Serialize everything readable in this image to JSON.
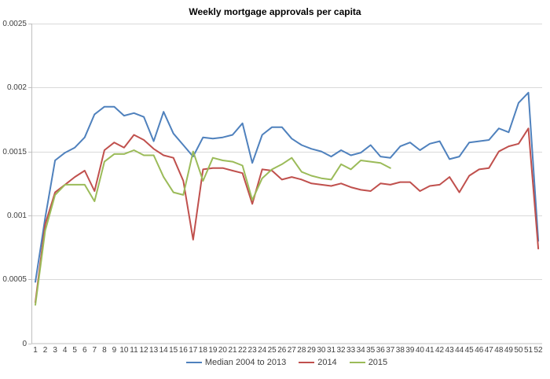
{
  "title": "Weekly mortgage approvals per capita",
  "chart_data": {
    "type": "line",
    "title": "Weekly mortgage approvals per capita",
    "xlabel": "",
    "ylabel": "",
    "x": [
      1,
      2,
      3,
      4,
      5,
      6,
      7,
      8,
      9,
      10,
      11,
      12,
      13,
      14,
      15,
      16,
      17,
      18,
      19,
      20,
      21,
      22,
      23,
      24,
      25,
      26,
      27,
      28,
      29,
      30,
      31,
      32,
      33,
      34,
      35,
      36,
      37,
      38,
      39,
      40,
      41,
      42,
      43,
      44,
      45,
      46,
      47,
      48,
      49,
      50,
      51,
      52
    ],
    "ylim": [
      0,
      0.0025
    ],
    "y_tick_labels": [
      "0",
      "0.0005",
      "0.001",
      "0.0015",
      "0.002",
      "0.0025"
    ],
    "grid": "horizontal",
    "legend_position": "bottom",
    "background": "#ffffff",
    "gridline_color": "#d9d9d9",
    "axis_color": "#bfbfbf",
    "series": [
      {
        "name": "Median 2004 to 2013",
        "color": "#4F81BD",
        "values": [
          0.00048,
          0.00098,
          0.00143,
          0.00149,
          0.00153,
          0.00161,
          0.00179,
          0.00185,
          0.00185,
          0.00178,
          0.0018,
          0.00177,
          0.00158,
          0.00181,
          0.00164,
          0.00155,
          0.00146,
          0.00161,
          0.0016,
          0.00161,
          0.00163,
          0.00172,
          0.00141,
          0.00163,
          0.00169,
          0.00169,
          0.0016,
          0.00155,
          0.00152,
          0.0015,
          0.00146,
          0.00151,
          0.00147,
          0.00149,
          0.00155,
          0.00146,
          0.00145,
          0.00154,
          0.00157,
          0.00151,
          0.00156,
          0.00158,
          0.00144,
          0.00146,
          0.00157,
          0.00158,
          0.00159,
          0.00168,
          0.00165,
          0.00188,
          0.00196,
          0.0008
        ]
      },
      {
        "name": "2014",
        "color": "#C0504D",
        "values": [
          0.00032,
          0.00093,
          0.00118,
          0.00124,
          0.0013,
          0.00135,
          0.00119,
          0.00151,
          0.00157,
          0.00153,
          0.00163,
          0.00159,
          0.00152,
          0.00147,
          0.00145,
          0.00127,
          0.00081,
          0.00136,
          0.00137,
          0.00137,
          0.00135,
          0.00133,
          0.00109,
          0.00136,
          0.00135,
          0.00128,
          0.0013,
          0.00128,
          0.00125,
          0.00124,
          0.00123,
          0.00125,
          0.00122,
          0.0012,
          0.00119,
          0.00125,
          0.00124,
          0.00126,
          0.00126,
          0.00119,
          0.00123,
          0.00124,
          0.0013,
          0.00118,
          0.00131,
          0.00136,
          0.00137,
          0.0015,
          0.00154,
          0.00156,
          0.00168,
          0.00074
        ]
      },
      {
        "name": "2015",
        "color": "#9BBB59",
        "values": [
          0.0003,
          0.00088,
          0.00116,
          0.00124,
          0.00124,
          0.00124,
          0.00111,
          0.00142,
          0.00148,
          0.00148,
          0.00151,
          0.00147,
          0.00147,
          0.0013,
          0.00118,
          0.00116,
          0.0015,
          0.00127,
          0.00145,
          0.00143,
          0.00142,
          0.00139,
          0.00112,
          0.00129,
          0.00136,
          0.0014,
          0.00145,
          0.00134,
          0.00131,
          0.00129,
          0.00128,
          0.0014,
          0.00136,
          0.00143,
          0.00142,
          0.00141,
          0.00137
        ]
      }
    ]
  }
}
